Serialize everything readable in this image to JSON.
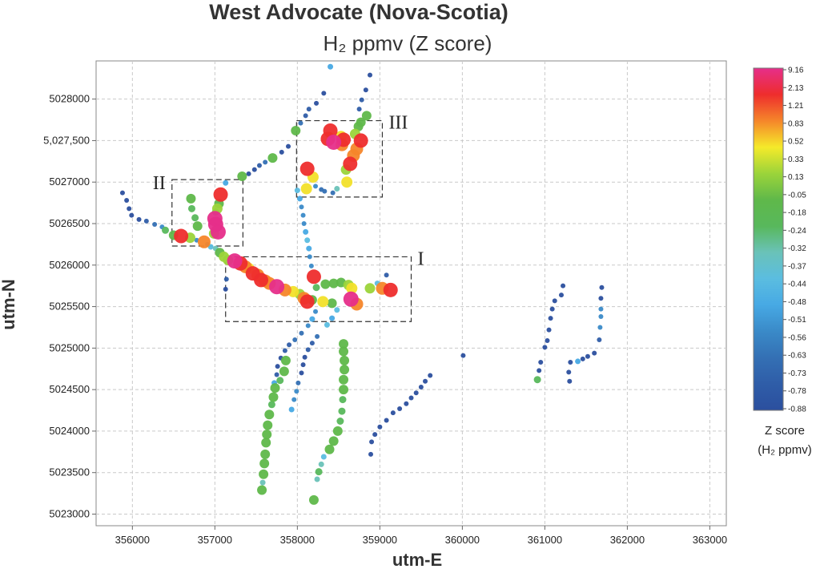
{
  "chart_data": {
    "type": "scatter",
    "title": "West Advocate (Nova-Scotia)",
    "subtitle": "H₂ ppmv (Z score)",
    "xlabel": "utm-E",
    "ylabel": "utm-N",
    "xlim": [
      355560,
      363200
    ],
    "ylim": [
      5022860,
      5028460
    ],
    "x_ticks": [
      356000,
      357000,
      358000,
      359000,
      360000,
      361000,
      362000,
      363000
    ],
    "x_tick_labels": [
      "356000",
      "357000",
      "358000",
      "359000",
      "360000",
      "361000",
      "362000",
      "363000"
    ],
    "y_ticks": [
      5023000,
      5023500,
      5024000,
      5024500,
      5025000,
      5025500,
      5026000,
      5026500,
      5027000,
      5027500,
      5028000
    ],
    "y_tick_labels": [
      "5023000",
      "5023500",
      "5024000",
      "5024500",
      "5025000",
      "5025500",
      "5026000",
      "5026500",
      "5027000",
      "5,027,500",
      "5028000"
    ],
    "grid": true,
    "colorbar": {
      "title": [
        "Z score",
        "(H₂ ppmv)"
      ],
      "tick_labels": [
        "9.16",
        "2.13",
        "1.21",
        "0.83",
        "0.52",
        "0.33",
        "0.13",
        "-0.05",
        "-0.18",
        "-0.24",
        "-0.32",
        "-0.37",
        "-0.44",
        "-0.48",
        "-0.51",
        "-0.56",
        "-0.63",
        "-0.73",
        "-0.78",
        "-0.88"
      ],
      "colors": [
        "#e62e8a",
        "#ee2d2d",
        "#f5862a",
        "#f5ea2a",
        "#9bd43a",
        "#5fb84a",
        "#58b85c",
        "#6ac2b8",
        "#5bbde0",
        "#47a9e4",
        "#3a8ac8",
        "#3470b4",
        "#2f5da8",
        "#2b4f9e"
      ]
    },
    "regions": [
      {
        "label": "I",
        "x0": 357130,
        "x1": 359380,
        "y0": 5025320,
        "y1": 5026100
      },
      {
        "label": "II",
        "x0": 356480,
        "x1": 357340,
        "y0": 5026230,
        "y1": 5027030
      },
      {
        "label": "III",
        "x0": 357990,
        "x1": 359030,
        "y0": 5026820,
        "y1": 5027740
      }
    ],
    "points": [
      {
        "x": 355880,
        "y": 5026870,
        "z": -0.88
      },
      {
        "x": 355930,
        "y": 5026780,
        "z": -0.88
      },
      {
        "x": 355960,
        "y": 5026680,
        "z": -0.88
      },
      {
        "x": 355990,
        "y": 5026600,
        "z": -0.88
      },
      {
        "x": 356080,
        "y": 5026550,
        "z": -0.78
      },
      {
        "x": 356170,
        "y": 5026530,
        "z": -0.63
      },
      {
        "x": 356270,
        "y": 5026490,
        "z": -0.48
      },
      {
        "x": 356360,
        "y": 5026460,
        "z": -0.32
      },
      {
        "x": 356400,
        "y": 5026420,
        "z": 0.13
      },
      {
        "x": 356500,
        "y": 5026360,
        "z": 0.33
      },
      {
        "x": 356590,
        "y": 5026350,
        "z": 2.13
      },
      {
        "x": 356700,
        "y": 5026330,
        "z": 0.52
      },
      {
        "x": 356780,
        "y": 5026300,
        "z": -0.37
      },
      {
        "x": 356870,
        "y": 5026280,
        "z": 1.21
      },
      {
        "x": 356910,
        "y": 5026250,
        "z": -0.32
      },
      {
        "x": 356950,
        "y": 5026220,
        "z": -0.18
      },
      {
        "x": 357010,
        "y": 5026200,
        "z": -0.05
      },
      {
        "x": 357060,
        "y": 5026150,
        "z": 0.33
      },
      {
        "x": 357110,
        "y": 5026100,
        "z": 0.52
      },
      {
        "x": 357160,
        "y": 5026060,
        "z": 0.52
      },
      {
        "x": 357240,
        "y": 5026050,
        "z": 5.0
      },
      {
        "x": 357310,
        "y": 5026020,
        "z": 2.13
      },
      {
        "x": 357370,
        "y": 5025980,
        "z": 1.21
      },
      {
        "x": 357410,
        "y": 5025960,
        "z": 0.83
      },
      {
        "x": 357460,
        "y": 5025900,
        "z": 2.13
      },
      {
        "x": 357520,
        "y": 5025880,
        "z": 1.21
      },
      {
        "x": 357560,
        "y": 5025820,
        "z": 2.13
      },
      {
        "x": 357610,
        "y": 5025810,
        "z": 1.21
      },
      {
        "x": 357660,
        "y": 5025780,
        "z": 1.21
      },
      {
        "x": 357750,
        "y": 5025740,
        "z": 5.0
      },
      {
        "x": 357850,
        "y": 5025700,
        "z": 1.21
      },
      {
        "x": 357950,
        "y": 5025680,
        "z": 0.83
      },
      {
        "x": 358030,
        "y": 5025650,
        "z": 0.52
      },
      {
        "x": 358080,
        "y": 5025600,
        "z": 1.21
      },
      {
        "x": 358120,
        "y": 5025560,
        "z": 2.13
      },
      {
        "x": 358180,
        "y": 5025580,
        "z": 0.33
      },
      {
        "x": 358310,
        "y": 5025560,
        "z": 0.83
      },
      {
        "x": 358420,
        "y": 5025540,
        "z": 0.33
      },
      {
        "x": 358230,
        "y": 5025730,
        "z": 0.13
      },
      {
        "x": 358340,
        "y": 5025770,
        "z": 0.33
      },
      {
        "x": 358440,
        "y": 5025780,
        "z": 0.33
      },
      {
        "x": 358530,
        "y": 5025790,
        "z": 0.33
      },
      {
        "x": 358620,
        "y": 5025760,
        "z": 0.52
      },
      {
        "x": 358660,
        "y": 5025720,
        "z": 0.83
      },
      {
        "x": 358720,
        "y": 5025530,
        "z": 1.21
      },
      {
        "x": 358650,
        "y": 5025590,
        "z": 5.0
      },
      {
        "x": 358880,
        "y": 5025720,
        "z": 0.52
      },
      {
        "x": 359030,
        "y": 5025720,
        "z": 1.21
      },
      {
        "x": 359130,
        "y": 5025700,
        "z": 2.13
      },
      {
        "x": 358970,
        "y": 5025780,
        "z": -0.18
      },
      {
        "x": 359080,
        "y": 5025880,
        "z": -0.63
      },
      {
        "x": 358200,
        "y": 5025860,
        "z": 2.13
      },
      {
        "x": 358170,
        "y": 5025990,
        "z": -0.32
      },
      {
        "x": 358150,
        "y": 5026100,
        "z": -0.32
      },
      {
        "x": 358140,
        "y": 5026200,
        "z": -0.24
      },
      {
        "x": 358120,
        "y": 5026300,
        "z": -0.18
      },
      {
        "x": 358100,
        "y": 5026400,
        "z": -0.24
      },
      {
        "x": 358080,
        "y": 5026500,
        "z": -0.32
      },
      {
        "x": 358070,
        "y": 5026600,
        "z": -0.37
      },
      {
        "x": 358050,
        "y": 5026700,
        "z": -0.32
      },
      {
        "x": 358030,
        "y": 5026800,
        "z": -0.24
      },
      {
        "x": 358000,
        "y": 5026900,
        "z": -0.18
      },
      {
        "x": 358110,
        "y": 5026920,
        "z": 0.83
      },
      {
        "x": 358120,
        "y": 5027160,
        "z": 2.13
      },
      {
        "x": 358190,
        "y": 5027060,
        "z": 0.83
      },
      {
        "x": 358220,
        "y": 5026950,
        "z": -0.37
      },
      {
        "x": 358290,
        "y": 5026910,
        "z": -0.44
      },
      {
        "x": 358330,
        "y": 5026890,
        "z": -0.48
      },
      {
        "x": 358430,
        "y": 5026870,
        "z": -0.51
      },
      {
        "x": 358480,
        "y": 5026920,
        "z": -0.05
      },
      {
        "x": 358600,
        "y": 5027000,
        "z": 0.83
      },
      {
        "x": 358590,
        "y": 5027150,
        "z": 0.52
      },
      {
        "x": 358640,
        "y": 5027220,
        "z": 2.13
      },
      {
        "x": 358680,
        "y": 5027320,
        "z": 1.21
      },
      {
        "x": 358720,
        "y": 5027400,
        "z": 1.21
      },
      {
        "x": 358770,
        "y": 5027500,
        "z": 2.13
      },
      {
        "x": 358370,
        "y": 5027520,
        "z": 2.13
      },
      {
        "x": 358400,
        "y": 5027620,
        "z": 2.13
      },
      {
        "x": 358440,
        "y": 5027480,
        "z": 5.0
      },
      {
        "x": 358530,
        "y": 5027550,
        "z": 0.83
      },
      {
        "x": 358560,
        "y": 5027510,
        "z": 2.13
      },
      {
        "x": 358540,
        "y": 5027450,
        "z": 1.21
      },
      {
        "x": 358700,
        "y": 5027580,
        "z": 0.52
      },
      {
        "x": 358740,
        "y": 5027670,
        "z": 0.33
      },
      {
        "x": 358770,
        "y": 5027720,
        "z": 0.33
      },
      {
        "x": 358840,
        "y": 5027800,
        "z": 0.33
      },
      {
        "x": 358750,
        "y": 5027880,
        "z": -0.63
      },
      {
        "x": 358780,
        "y": 5027990,
        "z": -0.63
      },
      {
        "x": 358830,
        "y": 5028110,
        "z": -0.73
      },
      {
        "x": 358880,
        "y": 5028290,
        "z": -0.88
      },
      {
        "x": 357980,
        "y": 5027620,
        "z": 0.33
      },
      {
        "x": 358040,
        "y": 5027710,
        "z": -0.51
      },
      {
        "x": 358100,
        "y": 5027800,
        "z": -0.63
      },
      {
        "x": 358140,
        "y": 5027880,
        "z": -0.63
      },
      {
        "x": 358230,
        "y": 5027950,
        "z": -0.78
      },
      {
        "x": 358320,
        "y": 5028070,
        "z": -0.88
      },
      {
        "x": 358400,
        "y": 5028390,
        "z": -0.24
      },
      {
        "x": 357890,
        "y": 5027430,
        "z": -0.73
      },
      {
        "x": 357810,
        "y": 5027360,
        "z": -0.78
      },
      {
        "x": 357700,
        "y": 5027290,
        "z": 0.33
      },
      {
        "x": 357610,
        "y": 5027240,
        "z": -0.48
      },
      {
        "x": 357540,
        "y": 5027200,
        "z": -0.63
      },
      {
        "x": 357480,
        "y": 5027150,
        "z": -0.73
      },
      {
        "x": 357410,
        "y": 5027100,
        "z": -0.78
      },
      {
        "x": 357330,
        "y": 5027070,
        "z": 0.33
      },
      {
        "x": 357130,
        "y": 5026990,
        "z": -0.24
      },
      {
        "x": 357070,
        "y": 5026850,
        "z": 2.13
      },
      {
        "x": 357050,
        "y": 5026740,
        "z": 0.33
      },
      {
        "x": 357030,
        "y": 5026680,
        "z": 0.52
      },
      {
        "x": 357010,
        "y": 5026640,
        "z": 0.13
      },
      {
        "x": 357000,
        "y": 5026560,
        "z": 5.0
      },
      {
        "x": 357010,
        "y": 5026490,
        "z": 5.0
      },
      {
        "x": 357040,
        "y": 5026400,
        "z": 5.0
      },
      {
        "x": 356990,
        "y": 5026380,
        "z": 0.52
      },
      {
        "x": 356710,
        "y": 5026800,
        "z": 0.33
      },
      {
        "x": 356720,
        "y": 5026680,
        "z": 0.13
      },
      {
        "x": 356760,
        "y": 5026570,
        "z": 0.13
      },
      {
        "x": 356790,
        "y": 5026470,
        "z": 0.33
      },
      {
        "x": 357140,
        "y": 5025830,
        "z": -0.63
      },
      {
        "x": 357130,
        "y": 5025710,
        "z": -0.88
      },
      {
        "x": 358220,
        "y": 5025440,
        "z": -0.32
      },
      {
        "x": 358180,
        "y": 5025350,
        "z": -0.24
      },
      {
        "x": 358130,
        "y": 5025270,
        "z": -0.32
      },
      {
        "x": 358050,
        "y": 5025180,
        "z": -0.48
      },
      {
        "x": 357970,
        "y": 5025100,
        "z": -0.51
      },
      {
        "x": 357900,
        "y": 5025040,
        "z": -0.56
      },
      {
        "x": 357850,
        "y": 5024970,
        "z": -0.63
      },
      {
        "x": 357800,
        "y": 5024880,
        "z": -0.73
      },
      {
        "x": 357760,
        "y": 5024780,
        "z": -0.78
      },
      {
        "x": 357750,
        "y": 5024680,
        "z": -0.56
      },
      {
        "x": 357720,
        "y": 5024580,
        "z": -0.24
      },
      {
        "x": 358240,
        "y": 5025140,
        "z": -0.48
      },
      {
        "x": 358180,
        "y": 5025060,
        "z": -0.56
      },
      {
        "x": 358130,
        "y": 5024980,
        "z": -0.63
      },
      {
        "x": 358090,
        "y": 5024890,
        "z": -0.73
      },
      {
        "x": 358070,
        "y": 5024800,
        "z": -0.78
      },
      {
        "x": 358050,
        "y": 5024700,
        "z": -0.88
      },
      {
        "x": 358010,
        "y": 5024580,
        "z": -0.48
      },
      {
        "x": 357990,
        "y": 5024480,
        "z": -0.37
      },
      {
        "x": 357960,
        "y": 5024380,
        "z": -0.32
      },
      {
        "x": 357930,
        "y": 5024260,
        "z": -0.24
      },
      {
        "x": 358480,
        "y": 5025460,
        "z": -0.18
      },
      {
        "x": 358420,
        "y": 5025360,
        "z": -0.24
      },
      {
        "x": 358360,
        "y": 5025280,
        "z": -0.18
      },
      {
        "x": 357860,
        "y": 5024850,
        "z": 0.33
      },
      {
        "x": 357840,
        "y": 5024720,
        "z": 0.33
      },
      {
        "x": 357790,
        "y": 5024610,
        "z": 0.13
      },
      {
        "x": 357730,
        "y": 5024520,
        "z": 0.33
      },
      {
        "x": 357710,
        "y": 5024410,
        "z": 0.33
      },
      {
        "x": 357690,
        "y": 5024320,
        "z": 0.13
      },
      {
        "x": 357660,
        "y": 5024200,
        "z": 0.33
      },
      {
        "x": 357640,
        "y": 5024070,
        "z": 0.33
      },
      {
        "x": 357630,
        "y": 5023960,
        "z": 0.33
      },
      {
        "x": 357620,
        "y": 5023860,
        "z": 0.33
      },
      {
        "x": 357610,
        "y": 5023720,
        "z": 0.33
      },
      {
        "x": 357600,
        "y": 5023610,
        "z": 0.33
      },
      {
        "x": 357590,
        "y": 5023480,
        "z": 0.33
      },
      {
        "x": 357580,
        "y": 5023380,
        "z": -0.05
      },
      {
        "x": 357570,
        "y": 5023290,
        "z": 0.33
      },
      {
        "x": 358560,
        "y": 5025050,
        "z": 0.33
      },
      {
        "x": 358560,
        "y": 5024960,
        "z": 0.33
      },
      {
        "x": 358570,
        "y": 5024850,
        "z": 0.33
      },
      {
        "x": 358570,
        "y": 5024740,
        "z": 0.33
      },
      {
        "x": 358560,
        "y": 5024620,
        "z": 0.33
      },
      {
        "x": 358560,
        "y": 5024500,
        "z": 0.33
      },
      {
        "x": 358550,
        "y": 5024380,
        "z": 0.13
      },
      {
        "x": 358540,
        "y": 5024240,
        "z": 0.13
      },
      {
        "x": 358520,
        "y": 5024120,
        "z": 0.13
      },
      {
        "x": 358490,
        "y": 5024000,
        "z": 0.33
      },
      {
        "x": 358440,
        "y": 5023880,
        "z": 0.33
      },
      {
        "x": 358390,
        "y": 5023780,
        "z": 0.33
      },
      {
        "x": 358320,
        "y": 5023690,
        "z": -0.18
      },
      {
        "x": 358290,
        "y": 5023600,
        "z": -0.05
      },
      {
        "x": 358260,
        "y": 5023510,
        "z": 0.13
      },
      {
        "x": 358240,
        "y": 5023420,
        "z": -0.05
      },
      {
        "x": 358200,
        "y": 5023170,
        "z": 0.33
      },
      {
        "x": 359610,
        "y": 5024670,
        "z": -0.88
      },
      {
        "x": 359550,
        "y": 5024600,
        "z": -0.88
      },
      {
        "x": 359500,
        "y": 5024530,
        "z": -0.88
      },
      {
        "x": 359440,
        "y": 5024460,
        "z": -0.88
      },
      {
        "x": 359380,
        "y": 5024400,
        "z": -0.88
      },
      {
        "x": 359320,
        "y": 5024330,
        "z": -0.88
      },
      {
        "x": 359240,
        "y": 5024270,
        "z": -0.88
      },
      {
        "x": 359160,
        "y": 5024220,
        "z": -0.88
      },
      {
        "x": 359080,
        "y": 5024130,
        "z": -0.88
      },
      {
        "x": 359000,
        "y": 5024050,
        "z": -0.88
      },
      {
        "x": 358940,
        "y": 5023960,
        "z": -0.88
      },
      {
        "x": 358900,
        "y": 5023870,
        "z": -0.88
      },
      {
        "x": 358890,
        "y": 5023720,
        "z": -0.88
      },
      {
        "x": 360010,
        "y": 5024910,
        "z": -0.88
      },
      {
        "x": 361220,
        "y": 5025750,
        "z": -0.88
      },
      {
        "x": 361200,
        "y": 5025640,
        "z": -0.73
      },
      {
        "x": 361120,
        "y": 5025570,
        "z": -0.78
      },
      {
        "x": 361090,
        "y": 5025470,
        "z": -0.78
      },
      {
        "x": 361070,
        "y": 5025360,
        "z": -0.88
      },
      {
        "x": 361050,
        "y": 5025220,
        "z": -0.88
      },
      {
        "x": 361030,
        "y": 5025090,
        "z": -0.88
      },
      {
        "x": 361000,
        "y": 5025010,
        "z": -0.88
      },
      {
        "x": 360950,
        "y": 5024830,
        "z": -0.88
      },
      {
        "x": 360930,
        "y": 5024730,
        "z": -0.88
      },
      {
        "x": 360910,
        "y": 5024620,
        "z": 0.13
      },
      {
        "x": 361690,
        "y": 5025730,
        "z": -0.88
      },
      {
        "x": 361680,
        "y": 5025600,
        "z": -0.78
      },
      {
        "x": 361680,
        "y": 5025470,
        "z": -0.37
      },
      {
        "x": 361680,
        "y": 5025380,
        "z": -0.32
      },
      {
        "x": 361670,
        "y": 5025250,
        "z": -0.32
      },
      {
        "x": 361660,
        "y": 5025100,
        "z": -0.63
      },
      {
        "x": 361600,
        "y": 5024940,
        "z": -0.78
      },
      {
        "x": 361520,
        "y": 5024900,
        "z": -0.78
      },
      {
        "x": 361460,
        "y": 5024870,
        "z": -0.78
      },
      {
        "x": 361400,
        "y": 5024840,
        "z": -0.24
      },
      {
        "x": 361310,
        "y": 5024830,
        "z": -0.73
      },
      {
        "x": 361290,
        "y": 5024710,
        "z": -0.88
      },
      {
        "x": 361300,
        "y": 5024600,
        "z": -0.88
      }
    ]
  }
}
